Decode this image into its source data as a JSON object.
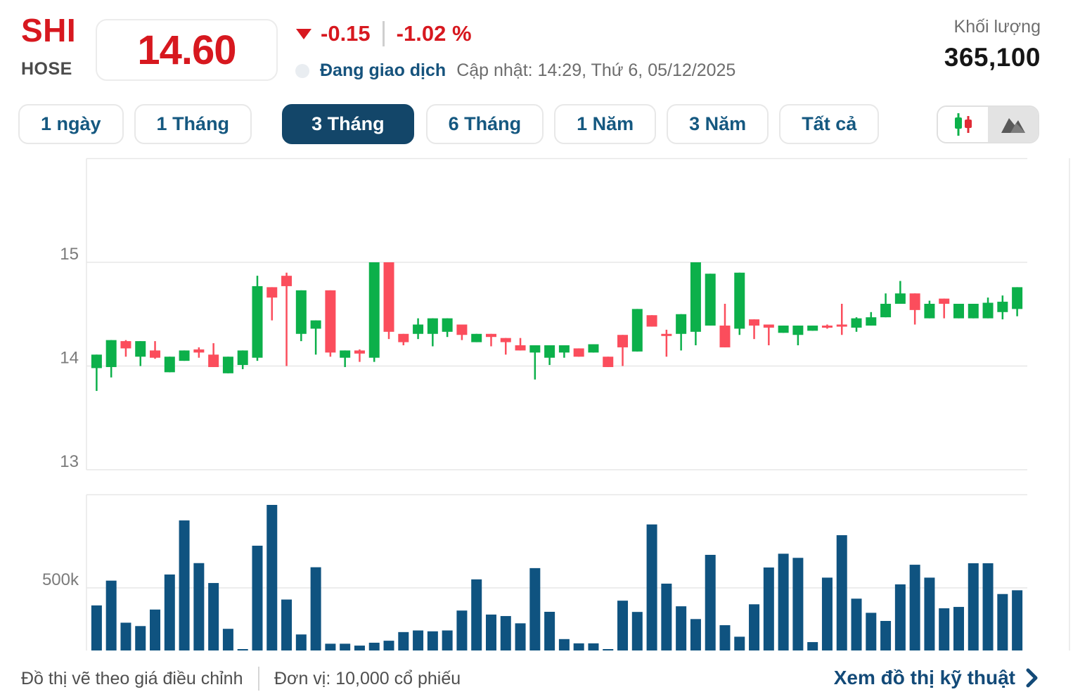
{
  "header": {
    "symbol": "SHI",
    "exchange": "HOSE",
    "price": "14.60",
    "change": "-0.15",
    "change_percent": "-1.02 %",
    "session_status": "Đang giao dịch",
    "updated": "Cập nhật: 14:29, Thứ 6, 05/12/2025",
    "volume_label": "Khối lượng",
    "volume_value": "365,100"
  },
  "tabs": {
    "items": [
      {
        "label": "1 ngày"
      },
      {
        "label": "1 Tháng"
      },
      {
        "label": "3 Tháng"
      },
      {
        "label": "6 Tháng"
      },
      {
        "label": "1 Năm"
      },
      {
        "label": "3 Năm"
      },
      {
        "label": "Tất cả"
      }
    ],
    "selected": "3 Tháng"
  },
  "view_toggle": {
    "options": [
      "candlestick",
      "area"
    ],
    "highlighted": "area"
  },
  "chart_data": {
    "type": "candlestick+volume",
    "price_axis": {
      "labels": [
        15,
        14,
        13
      ],
      "min": 13,
      "max": 16,
      "grid": true
    },
    "volume_axis": {
      "label": "500k",
      "gridline_value_k": 500,
      "unit": "10,000 cổ phiếu"
    },
    "candles_ohlc": [
      [
        13.98,
        14.11,
        13.76,
        14.11
      ],
      [
        13.99,
        14.25,
        13.89,
        14.25
      ],
      [
        14.24,
        14.25,
        14.09,
        14.17
      ],
      [
        14.09,
        14.24,
        14.0,
        14.24
      ],
      [
        14.15,
        14.24,
        14.07,
        14.08
      ],
      [
        13.94,
        14.09,
        13.94,
        14.09
      ],
      [
        14.05,
        14.15,
        14.05,
        14.15
      ],
      [
        14.16,
        14.18,
        14.08,
        14.13
      ],
      [
        14.11,
        14.22,
        13.99,
        13.99
      ],
      [
        13.93,
        14.09,
        13.93,
        14.09
      ],
      [
        14.01,
        14.15,
        13.97,
        14.15
      ],
      [
        14.08,
        14.87,
        14.05,
        14.77
      ],
      [
        14.76,
        14.76,
        14.44,
        14.66
      ],
      [
        14.87,
        14.9,
        14.0,
        14.77
      ],
      [
        14.31,
        14.73,
        14.24,
        14.73
      ],
      [
        14.36,
        14.44,
        14.11,
        14.44
      ],
      [
        14.73,
        14.73,
        14.09,
        14.13
      ],
      [
        14.08,
        14.15,
        13.99,
        14.15
      ],
      [
        14.15,
        14.16,
        14.04,
        14.12
      ],
      [
        14.08,
        15.0,
        14.04,
        15.0
      ],
      [
        15.0,
        15.0,
        14.26,
        14.33
      ],
      [
        14.31,
        14.31,
        14.2,
        14.23
      ],
      [
        14.31,
        14.46,
        14.26,
        14.4
      ],
      [
        14.31,
        14.46,
        14.19,
        14.46
      ],
      [
        14.33,
        14.46,
        14.28,
        14.46
      ],
      [
        14.4,
        14.4,
        14.25,
        14.3
      ],
      [
        14.23,
        14.31,
        14.23,
        14.31
      ],
      [
        14.31,
        14.31,
        14.19,
        14.28
      ],
      [
        14.27,
        14.27,
        14.11,
        14.23
      ],
      [
        14.2,
        14.27,
        14.15,
        14.15
      ],
      [
        14.13,
        14.2,
        13.87,
        14.2
      ],
      [
        14.08,
        14.2,
        14.01,
        14.2
      ],
      [
        14.13,
        14.2,
        14.08,
        14.2
      ],
      [
        14.17,
        14.17,
        14.09,
        14.09
      ],
      [
        14.13,
        14.21,
        14.13,
        14.21
      ],
      [
        14.09,
        14.09,
        13.99,
        13.99
      ],
      [
        14.3,
        14.3,
        14.0,
        14.18
      ],
      [
        14.14,
        14.55,
        14.14,
        14.55
      ],
      [
        14.49,
        14.49,
        14.38,
        14.38
      ],
      [
        14.31,
        14.35,
        14.09,
        14.29
      ],
      [
        14.31,
        14.5,
        14.15,
        14.5
      ],
      [
        14.33,
        15.0,
        14.2,
        15.0
      ],
      [
        14.39,
        14.89,
        14.39,
        14.89
      ],
      [
        14.39,
        14.6,
        14.18,
        14.18
      ],
      [
        14.36,
        14.9,
        14.3,
        14.9
      ],
      [
        14.45,
        14.45,
        14.26,
        14.39
      ],
      [
        14.4,
        14.4,
        14.2,
        14.37
      ],
      [
        14.32,
        14.39,
        14.32,
        14.39
      ],
      [
        14.3,
        14.39,
        14.2,
        14.39
      ],
      [
        14.34,
        14.39,
        14.34,
        14.39
      ],
      [
        14.39,
        14.4,
        14.36,
        14.37
      ],
      [
        14.4,
        14.6,
        14.3,
        14.38
      ],
      [
        14.37,
        14.47,
        14.33,
        14.46
      ],
      [
        14.39,
        14.52,
        14.39,
        14.47
      ],
      [
        14.47,
        14.7,
        14.47,
        14.6
      ],
      [
        14.6,
        14.82,
        14.6,
        14.7
      ],
      [
        14.7,
        14.7,
        14.4,
        14.54
      ],
      [
        14.46,
        14.63,
        14.46,
        14.6
      ],
      [
        14.65,
        14.65,
        14.46,
        14.6
      ],
      [
        14.46,
        14.6,
        14.46,
        14.6
      ],
      [
        14.46,
        14.6,
        14.46,
        14.6
      ],
      [
        14.46,
        14.66,
        14.46,
        14.61
      ],
      [
        14.52,
        14.68,
        14.45,
        14.62
      ],
      [
        14.55,
        14.76,
        14.48,
        14.76
      ]
    ],
    "volumes_k": [
      360,
      558,
      222,
      195,
      327,
      607,
      1039,
      698,
      539,
      173,
      8,
      837,
      1163,
      407,
      128,
      665,
      54,
      54,
      39,
      62,
      78,
      147,
      160,
      153,
      160,
      319,
      568,
      287,
      275,
      217,
      658,
      309,
      91,
      57,
      57,
      5,
      398,
      308,
      1007,
      534,
      353,
      251,
      764,
      202,
      110,
      369,
      663,
      773,
      740,
      67,
      582,
      921,
      414,
      301,
      236,
      528,
      685,
      582,
      337,
      348,
      697,
      697,
      451,
      481
    ],
    "colors": {
      "up": "#0cb04a",
      "down": "#fb4d5c",
      "volume": "#0f5380",
      "grid": "#e7e7e7",
      "axis_text": "#7b7b7b"
    }
  },
  "footer": {
    "note_adjusted": "Đồ thị vẽ theo giá điều chỉnh",
    "note_unit": "Đơn vị: 10,000 cổ phiếu",
    "link": "Xem đồ thị kỹ thuật"
  }
}
